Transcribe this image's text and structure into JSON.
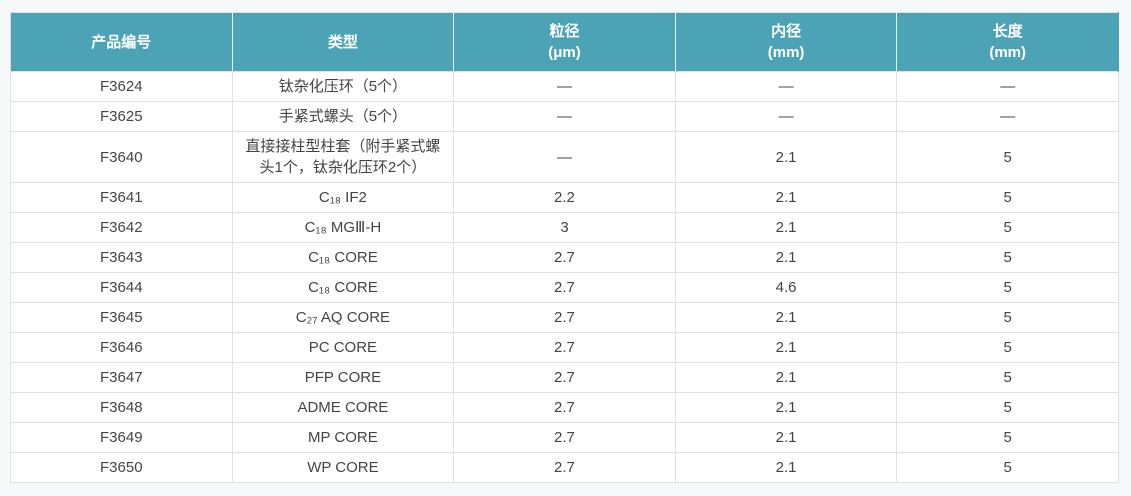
{
  "table": {
    "colors": {
      "header_bg": "#4ba3b5",
      "header_text": "#ffffff",
      "body_text": "#444444",
      "row_border": "#e0e0e0",
      "row_bg": "#ffffff",
      "page_bg": "#f7f8fa"
    },
    "columns": [
      {
        "key": "product-no",
        "label": "产品编号",
        "unit": ""
      },
      {
        "key": "type",
        "label": "类型",
        "unit": ""
      },
      {
        "key": "particle-size",
        "label": "粒径",
        "unit": "(μm)"
      },
      {
        "key": "inner-diameter",
        "label": "内径",
        "unit": "(mm)"
      },
      {
        "key": "length",
        "label": "长度",
        "unit": "(mm)"
      }
    ],
    "rows": [
      [
        "F3624",
        "钛杂化压环（5个）",
        "—",
        "—",
        "—"
      ],
      [
        "F3625",
        "手紧式螺头（5个）",
        "—",
        "—",
        "—"
      ],
      [
        "F3640",
        "直接接柱型柱套（附手紧式螺头1个，钛杂化压环2个）",
        "—",
        "2.1",
        "5"
      ],
      [
        "F3641",
        "C₁₈ IF2",
        "2.2",
        "2.1",
        "5"
      ],
      [
        "F3642",
        "C₁₈ MGⅢ-H",
        "3",
        "2.1",
        "5"
      ],
      [
        "F3643",
        "C₁₈ CORE",
        "2.7",
        "2.1",
        "5"
      ],
      [
        "F3644",
        "C₁₈ CORE",
        "2.7",
        "4.6",
        "5"
      ],
      [
        "F3645",
        "C₂₇ AQ CORE",
        "2.7",
        "2.1",
        "5"
      ],
      [
        "F3646",
        "PC CORE",
        "2.7",
        "2.1",
        "5"
      ],
      [
        "F3647",
        "PFP CORE",
        "2.7",
        "2.1",
        "5"
      ],
      [
        "F3648",
        "ADME CORE",
        "2.7",
        "2.1",
        "5"
      ],
      [
        "F3649",
        "MP CORE",
        "2.7",
        "2.1",
        "5"
      ],
      [
        "F3650",
        "WP CORE",
        "2.7",
        "2.1",
        "5"
      ]
    ]
  }
}
